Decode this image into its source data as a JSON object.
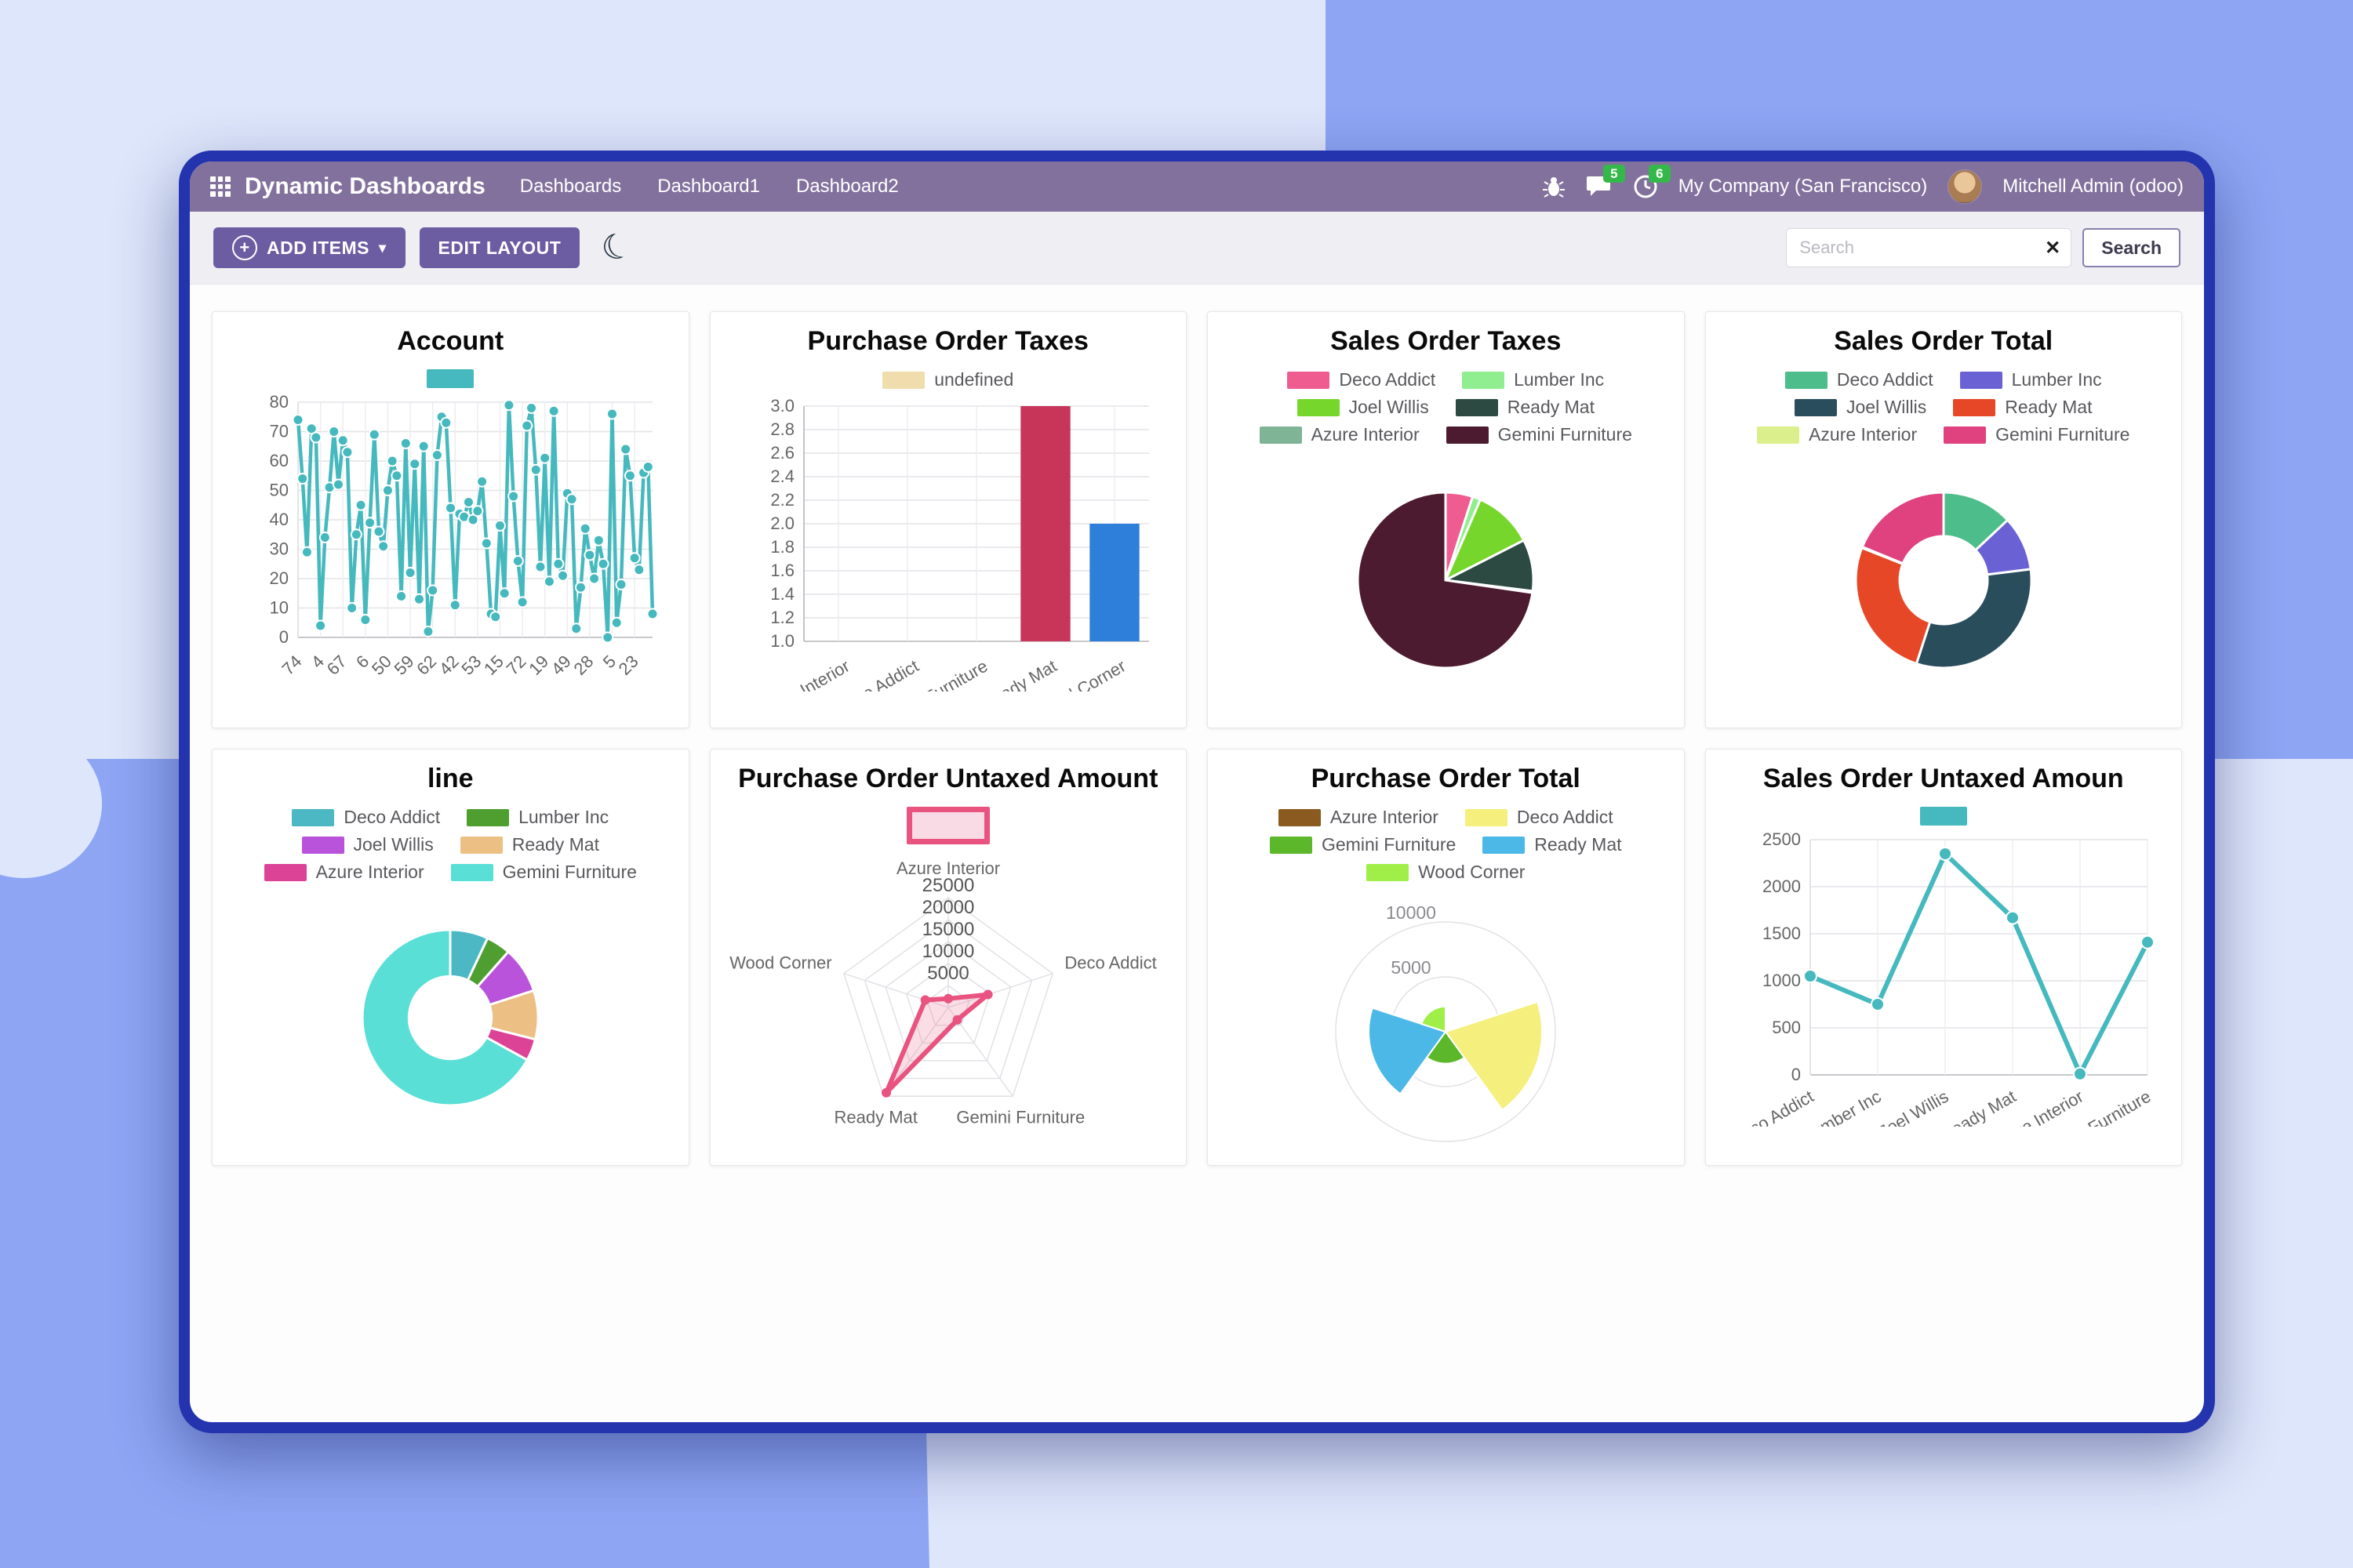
{
  "background": {
    "base_color": "#dee6fb",
    "accent_color": "#8da5f3"
  },
  "window": {
    "border_color": "#2434ae",
    "navbar_color": "#82719d",
    "accent_color": "#6c5da2"
  },
  "navbar": {
    "brand": "Dynamic Dashboards",
    "menu": [
      "Dashboards",
      "Dashboard1",
      "Dashboard2"
    ],
    "chat_badge": "5",
    "activity_badge": "6",
    "company": "My Company (San Francisco)",
    "user": "Mitchell Admin (odoo)"
  },
  "toolbar": {
    "add_items": "ADD ITEMS",
    "edit_layout": "EDIT LAYOUT",
    "search_placeholder": "Search",
    "search_button": "Search"
  },
  "icons": {
    "moon": "☾",
    "caret": "▾",
    "plus": "+",
    "clear": "✕"
  },
  "chart_data": [
    {
      "type": "line",
      "title": "Account",
      "color": "#45b9be",
      "ylim": [
        0,
        80
      ],
      "ystep": 10,
      "label_every": 5,
      "x_tick_labels": [
        "74",
        "4",
        "67",
        "6",
        "50",
        "59",
        "62",
        "42",
        "53",
        "15",
        "72",
        "19",
        "49",
        "28",
        "5",
        "23"
      ],
      "values": [
        74,
        54,
        29,
        71,
        68,
        4,
        34,
        51,
        70,
        52,
        67,
        63,
        10,
        35,
        45,
        6,
        39,
        69,
        36,
        31,
        50,
        60,
        55,
        14,
        66,
        22,
        59,
        13,
        65,
        2,
        16,
        62,
        75,
        73,
        44,
        11,
        42,
        41,
        46,
        40,
        43,
        53,
        32,
        8,
        7,
        38,
        15,
        79,
        48,
        26,
        12,
        72,
        78,
        57,
        24,
        61,
        19,
        77,
        25,
        21,
        49,
        47,
        3,
        17,
        37,
        28,
        20,
        33,
        25,
        0,
        76,
        5,
        18,
        64,
        55,
        27,
        23,
        56,
        58,
        8
      ],
      "legend": {
        "cols": 1,
        "items": [
          {
            "label": "",
            "color": "#45b9be",
            "w": 60,
            "h": 24
          }
        ]
      }
    },
    {
      "type": "bar",
      "title": "Purchase Order Taxes",
      "categories": [
        "Azure Interior",
        "Deco Addict",
        "Gemini Furniture",
        "Ready Mat",
        "Wood Corner"
      ],
      "values": [
        null,
        null,
        null,
        3,
        2
      ],
      "colors": [
        null,
        null,
        null,
        "#c73558",
        "#2e7fd9"
      ],
      "ylim": [
        1,
        3
      ],
      "ystep": 0.2,
      "legend": {
        "cols": 1,
        "items": [
          {
            "label": "undefined",
            "color": "#f0ddae"
          }
        ]
      }
    },
    {
      "type": "pie",
      "title": "Sales Order Taxes",
      "inner_ratio": 0,
      "labels": [
        "Deco Addict",
        "Lumber Inc",
        "Joel Willis",
        "Ready Mat",
        "Azure Interior",
        "Gemini Furniture"
      ],
      "values": [
        5,
        1.5,
        11,
        9.5,
        0.3,
        72.7
      ],
      "colors": [
        "#ee5c90",
        "#90ee90",
        "#77d62c",
        "#2c4a42",
        "#7fb596",
        "#4d1b2f"
      ],
      "legend": {
        "cols": 2,
        "items": [
          {
            "label": "Deco Addict",
            "color": "#ee5c90"
          },
          {
            "label": "Lumber Inc",
            "color": "#90ee90"
          },
          {
            "label": "Joel Willis",
            "color": "#77d62c"
          },
          {
            "label": "Ready Mat",
            "color": "#2c4a42"
          },
          {
            "label": "Azure Interior",
            "color": "#7fb596"
          },
          {
            "label": "Gemini Furniture",
            "color": "#4d1b2f"
          }
        ]
      }
    },
    {
      "type": "pie",
      "title": "Sales Order Total",
      "inner_ratio": 0.5,
      "labels": [
        "Deco Addict",
        "Lumber Inc",
        "Joel Willis",
        "Ready Mat",
        "Azure Interior",
        "Gemini Furniture"
      ],
      "values": [
        13,
        10,
        32,
        26,
        0.2,
        18.8
      ],
      "colors": [
        "#4dbd8b",
        "#6a62d4",
        "#2a4d5c",
        "#e64727",
        "#dcef8d",
        "#e04280"
      ],
      "legend": {
        "cols": 2,
        "items": [
          {
            "label": "Deco Addict",
            "color": "#4dbd8b"
          },
          {
            "label": "Lumber Inc",
            "color": "#6a62d4"
          },
          {
            "label": "Joel Willis",
            "color": "#2a4d5c"
          },
          {
            "label": "Ready Mat",
            "color": "#e64727"
          },
          {
            "label": "Azure Interior",
            "color": "#dcef8d"
          },
          {
            "label": "Gemini Furniture",
            "color": "#e04280"
          }
        ]
      }
    },
    {
      "type": "pie",
      "title": "line",
      "inner_ratio": 0.47,
      "labels": [
        "Deco Addict",
        "Lumber Inc",
        "Joel Willis",
        "Ready Mat",
        "Azure Interior",
        "Gemini Furniture"
      ],
      "values": [
        7,
        4.5,
        8.5,
        9,
        4,
        67
      ],
      "colors": [
        "#4cb8c4",
        "#4f9e30",
        "#b953dc",
        "#ecc084",
        "#dc4397",
        "#59dfd6"
      ],
      "legend": {
        "cols": 2,
        "items": [
          {
            "label": "Deco Addict",
            "color": "#4cb8c4"
          },
          {
            "label": "Lumber Inc",
            "color": "#4f9e30"
          },
          {
            "label": "Joel Willis",
            "color": "#b953dc"
          },
          {
            "label": "Ready Mat",
            "color": "#ecc084"
          },
          {
            "label": "Azure Interior",
            "color": "#dc4397"
          },
          {
            "label": "Gemini Furniture",
            "color": "#59dfd6"
          }
        ]
      }
    },
    {
      "type": "radar",
      "title": "Purchase Order Untaxed Amount",
      "axes": [
        "Azure Interior",
        "Deco Addict",
        "Gemini Furniture",
        "Ready Mat",
        "Wood Corner"
      ],
      "values": [
        2000,
        9500,
        3500,
        24000,
        5500
      ],
      "max": 25000,
      "ticks": [
        5000,
        10000,
        15000,
        20000,
        25000
      ],
      "color": "#e8537f",
      "fill": "rgba(236,100,140,0.22)",
      "legend": {
        "cols": 1,
        "items": [
          {
            "label": "",
            "color": "#f9dbe6",
            "border": "#e8537f",
            "w": 92,
            "h": 34
          }
        ]
      }
    },
    {
      "type": "polar",
      "title": "Purchase Order Total",
      "labels": [
        "Azure Interior",
        "Deco Addict",
        "Gemini Furniture",
        "Ready Mat",
        "Wood Corner"
      ],
      "values": [
        0,
        8800,
        2900,
        7000,
        2300
      ],
      "colors": [
        "#8a5a20",
        "#f5ef7d",
        "#5cb82a",
        "#4cb8e8",
        "#a0ef48"
      ],
      "max": 10000,
      "rings": [
        5000,
        10000
      ],
      "legend": {
        "cols": 2,
        "items": [
          {
            "label": "Azure Interior",
            "color": "#8a5a20"
          },
          {
            "label": "Deco Addict",
            "color": "#f5ef7d"
          },
          {
            "label": "Gemini Furniture",
            "color": "#5cb82a"
          },
          {
            "label": "Ready Mat",
            "color": "#4cb8e8"
          },
          {
            "label": "Wood Corner",
            "color": "#a0ef48"
          }
        ]
      }
    },
    {
      "type": "line",
      "title": "Sales Order Untaxed Amoun",
      "color": "#45b9be",
      "ylim": [
        0,
        2500
      ],
      "ystep": 500,
      "label_every": 1,
      "x_tick_labels": [
        "Deco Addict",
        "Lumber Inc",
        "Joel Willis",
        "Ready Mat",
        "Azure Interior",
        "Gemini Furniture"
      ],
      "values": [
        1050,
        750,
        2350,
        1670,
        10,
        1410
      ],
      "legend": {
        "cols": 1,
        "items": [
          {
            "label": "",
            "color": "#45b9be",
            "w": 60,
            "h": 24
          }
        ]
      }
    }
  ]
}
